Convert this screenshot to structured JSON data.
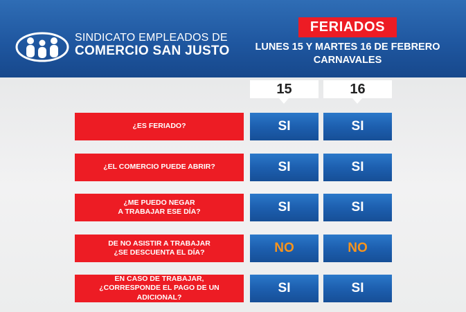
{
  "header": {
    "org_line1": "SINDICATO EMPLEADOS DE",
    "org_line2": "COMERCIO SAN JUSTO",
    "tag": "FERIADOS",
    "subtitle_line1": "LUNES 15 Y MARTES 16 DE FEBRERO",
    "subtitle_line2": "CARNAVALES"
  },
  "columns": [
    "15",
    "16"
  ],
  "rows": [
    {
      "question": "¿ES FERIADO?",
      "answers": [
        "SI",
        "SI"
      ]
    },
    {
      "question": "¿EL COMERCIO PUEDE ABRIR?",
      "answers": [
        "SI",
        "SI"
      ]
    },
    {
      "question": "¿ME PUEDO NEGAR\nA TRABAJAR ESE DÍA?",
      "answers": [
        "SI",
        "SI"
      ]
    },
    {
      "question": "DE NO ASISTIR A TRABAJAR\n¿SE DESCUENTA EL DÍA?",
      "answers": [
        "NO",
        "NO"
      ]
    },
    {
      "question": "EN CASO DE TRABAJAR,\n¿CORRESPONDE EL PAGO DE UN ADICIONAL?",
      "answers": [
        "SI",
        "SI"
      ]
    }
  ],
  "colors": {
    "header_blue": "#1f57a0",
    "question_red": "#ed1c24",
    "answer_blue": "#1d5faf",
    "no_orange": "#f7941d"
  },
  "icons": {
    "logo": "family-people-logo"
  }
}
